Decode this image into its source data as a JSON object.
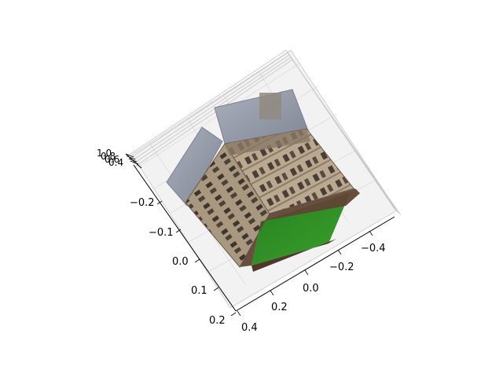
{
  "chart_data": {
    "type": "3d-surface",
    "title": "",
    "xlabel": "",
    "ylabel": "",
    "zlabel": "",
    "surface": "image-textured cube of a stone building (walls and grass roof)",
    "x_ticks": [
      "−0.4",
      "−0.2",
      "0.0",
      "0.2",
      "0.4"
    ],
    "y_ticks": [
      "−0.2",
      "−0.1",
      "0.0",
      "0.1",
      "0.2"
    ],
    "z_ticks": [
      "1.0",
      "0.8",
      "0.6",
      "0.4"
    ],
    "xlim": [
      -0.45,
      0.45
    ],
    "ylim": [
      -0.25,
      0.25
    ],
    "pane_color": "#f2f2f2",
    "grid": true,
    "colors": {
      "roof": "#9aa0ad",
      "wall_light": "#b5a58e",
      "wall_dark": "#6d5e4f",
      "grass": "#2f8a22",
      "ledge": "#5a4232"
    }
  }
}
